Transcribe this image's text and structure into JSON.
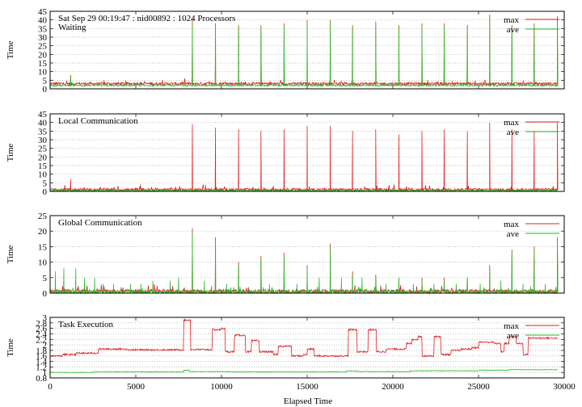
{
  "chart_data": {
    "type": "line",
    "xlabel": "Elapsed Time",
    "xlim": [
      0,
      30000
    ],
    "xticks": [
      0,
      5000,
      10000,
      15000,
      20000,
      25000,
      30000
    ],
    "legend": {
      "placement": "top-right",
      "entries": [
        "max",
        "ave"
      ]
    },
    "colors": {
      "max": "#dd2222",
      "ave": "#22bb22",
      "grid": "#aaaaaa"
    },
    "grid": true,
    "panels": [
      {
        "subtitle": "Sat Sep 29 00:19:47 : nid00892 : 1024 Processors",
        "title": "Waiting",
        "ylabel": "Time",
        "ylim": [
          0,
          45
        ],
        "yticks": [
          0,
          5,
          10,
          15,
          20,
          25,
          30,
          35,
          40,
          45
        ],
        "series": [
          {
            "name": "max",
            "baseline": 3,
            "noise": 0.8,
            "spikes": [
              [
                1200,
                8
              ],
              [
                8300,
                41
              ],
              [
                9650,
                38
              ],
              [
                11000,
                37
              ],
              [
                12300,
                37
              ],
              [
                13650,
                38
              ],
              [
                15000,
                40
              ],
              [
                16350,
                40
              ],
              [
                17650,
                37
              ],
              [
                19000,
                39
              ],
              [
                20350,
                37
              ],
              [
                21700,
                38
              ],
              [
                23000,
                38
              ],
              [
                24350,
                37
              ],
              [
                25650,
                43
              ],
              [
                26950,
                37
              ],
              [
                28250,
                38
              ],
              [
                29600,
                42
              ]
            ]
          },
          {
            "name": "ave",
            "baseline": 2,
            "noise": 0.5,
            "spikes": [
              [
                1200,
                7
              ],
              [
                8300,
                38
              ],
              [
                9650,
                37
              ],
              [
                11000,
                36
              ],
              [
                12300,
                36
              ],
              [
                13650,
                37
              ],
              [
                15000,
                39
              ],
              [
                16350,
                39
              ],
              [
                17650,
                36
              ],
              [
                19000,
                38
              ],
              [
                20350,
                36
              ],
              [
                21700,
                37
              ],
              [
                23000,
                37
              ],
              [
                24350,
                36
              ],
              [
                25650,
                40
              ],
              [
                26950,
                36
              ],
              [
                28250,
                37
              ],
              [
                29600,
                40
              ]
            ]
          }
        ]
      },
      {
        "title": "Local Communication",
        "ylabel": "Time",
        "ylim": [
          0,
          45
        ],
        "yticks": [
          0,
          5,
          10,
          15,
          20,
          25,
          30,
          35,
          40,
          45
        ],
        "series": [
          {
            "name": "max",
            "baseline": 1,
            "noise": 0.8,
            "spikes": [
              [
                1200,
                7
              ],
              [
                8300,
                39
              ],
              [
                9650,
                37
              ],
              [
                11000,
                36
              ],
              [
                12300,
                35
              ],
              [
                13650,
                36
              ],
              [
                15000,
                38
              ],
              [
                16350,
                38
              ],
              [
                17650,
                35
              ],
              [
                19000,
                36
              ],
              [
                20350,
                33
              ],
              [
                21700,
                35
              ],
              [
                23000,
                36
              ],
              [
                24350,
                35
              ],
              [
                25650,
                40
              ],
              [
                26950,
                36
              ],
              [
                28250,
                35
              ],
              [
                29600,
                40
              ]
            ]
          },
          {
            "name": "ave",
            "baseline": 0.5,
            "noise": 0.3,
            "spikes": []
          }
        ]
      },
      {
        "title": "Global Communication",
        "ylabel": "Time",
        "ylim": [
          0,
          25
        ],
        "yticks": [
          0,
          5,
          10,
          15,
          20,
          25
        ],
        "series": [
          {
            "name": "max",
            "baseline": 0.6,
            "noise": 0.6,
            "spikes": [
              [
                8300,
                21
              ],
              [
                9650,
                18
              ],
              [
                11000,
                10
              ],
              [
                12300,
                12
              ],
              [
                13650,
                13
              ],
              [
                15000,
                9
              ],
              [
                16350,
                16
              ],
              [
                17650,
                7
              ],
              [
                19000,
                6
              ],
              [
                20350,
                5
              ],
              [
                21700,
                5
              ],
              [
                23000,
                5
              ],
              [
                24350,
                5
              ],
              [
                25650,
                9
              ],
              [
                26950,
                14
              ],
              [
                28250,
                15
              ],
              [
                29600,
                18
              ]
            ]
          },
          {
            "name": "ave",
            "baseline": 0.4,
            "noise": 0.5,
            "spikes": [
              [
                300,
                7
              ],
              [
                800,
                8
              ],
              [
                1500,
                8
              ],
              [
                2000,
                5
              ],
              [
                2600,
                5
              ],
              [
                3100,
                3
              ],
              [
                3700,
                3
              ],
              [
                4700,
                3
              ],
              [
                5300,
                3
              ],
              [
                6000,
                4
              ],
              [
                7000,
                4
              ],
              [
                7500,
                5
              ],
              [
                8300,
                20
              ],
              [
                9000,
                4
              ],
              [
                9650,
                17
              ],
              [
                10300,
                3
              ],
              [
                11000,
                9
              ],
              [
                12300,
                11
              ],
              [
                12800,
                3
              ],
              [
                13650,
                12
              ],
              [
                14400,
                3
              ],
              [
                15000,
                8
              ],
              [
                15700,
                5
              ],
              [
                16350,
                15
              ],
              [
                17000,
                5
              ],
              [
                17650,
                6
              ],
              [
                18200,
                5
              ],
              [
                19000,
                6
              ],
              [
                19600,
                3
              ],
              [
                20350,
                5
              ],
              [
                21200,
                3
              ],
              [
                21700,
                4
              ],
              [
                22400,
                3
              ],
              [
                23000,
                4
              ],
              [
                23700,
                3
              ],
              [
                24350,
                5
              ],
              [
                25100,
                3
              ],
              [
                25650,
                8
              ],
              [
                26300,
                4
              ],
              [
                26950,
                13
              ],
              [
                27600,
                3
              ],
              [
                28250,
                14
              ],
              [
                28900,
                3
              ],
              [
                29600,
                18
              ]
            ]
          }
        ]
      },
      {
        "title": "Task Execution",
        "ylabel": "Time",
        "ylim": [
          0.8,
          3.0
        ],
        "yticks": [
          0.8,
          1.0,
          1.2,
          1.4,
          1.6,
          1.8,
          2.0,
          2.2,
          2.4,
          2.6,
          2.8,
          3.0
        ],
        "series": [
          {
            "name": "max",
            "noise": 0.03,
            "steps": [
              [
                0,
                1.6
              ],
              [
                700,
                1.65
              ],
              [
                1500,
                1.7
              ],
              [
                2800,
                1.85
              ],
              [
                4500,
                1.82
              ],
              [
                7800,
                2.9
              ],
              [
                8200,
                1.83
              ],
              [
                9450,
                2.55
              ],
              [
                10000,
                2.6
              ],
              [
                10200,
                1.75
              ],
              [
                10750,
                2.35
              ],
              [
                11400,
                1.75
              ],
              [
                11750,
                2.15
              ],
              [
                12200,
                1.75
              ],
              [
                13000,
                1.65
              ],
              [
                13300,
                1.95
              ],
              [
                14100,
                1.6
              ],
              [
                14800,
                1.65
              ],
              [
                15000,
                1.85
              ],
              [
                15400,
                1.6
              ],
              [
                17400,
                2.55
              ],
              [
                17900,
                1.75
              ],
              [
                18550,
                2.55
              ],
              [
                19050,
                1.75
              ],
              [
                19600,
                1.85
              ],
              [
                20400,
                1.85
              ],
              [
                20800,
                2.05
              ],
              [
                21100,
                2.2
              ],
              [
                21450,
                2.3
              ],
              [
                21700,
                1.6
              ],
              [
                22400,
                2.3
              ],
              [
                22800,
                1.65
              ],
              [
                23400,
                1.8
              ],
              [
                24000,
                1.85
              ],
              [
                24600,
                1.9
              ],
              [
                25000,
                2.1
              ],
              [
                25900,
                2.05
              ],
              [
                26300,
                1.75
              ],
              [
                26500,
                2.05
              ],
              [
                26800,
                2.3
              ],
              [
                27200,
                2.05
              ],
              [
                27600,
                1.65
              ],
              [
                27900,
                2.25
              ],
              [
                29500,
                2.25
              ]
            ]
          },
          {
            "name": "ave",
            "noise": 0.01,
            "steps": [
              [
                0,
                1.0
              ],
              [
                2500,
                1.02
              ],
              [
                7800,
                1.08
              ],
              [
                8100,
                1.03
              ],
              [
                10500,
                1.02
              ],
              [
                17300,
                1.05
              ],
              [
                18000,
                1.03
              ],
              [
                21000,
                1.06
              ],
              [
                25000,
                1.08
              ],
              [
                26800,
                1.1
              ],
              [
                29500,
                1.1
              ]
            ]
          }
        ]
      }
    ]
  }
}
